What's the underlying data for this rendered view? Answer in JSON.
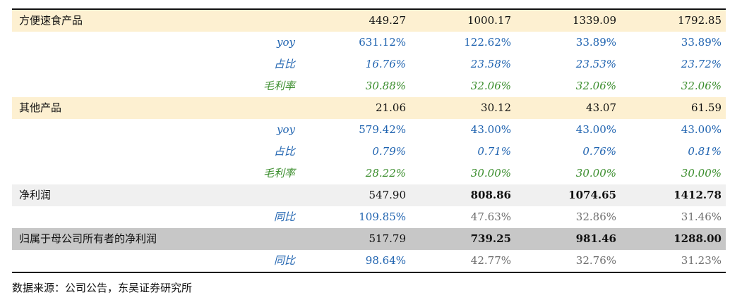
{
  "rows": [
    {
      "label": "方便速食产品",
      "values": [
        "449.27",
        "1000.17",
        "1339.09",
        "1792.85"
      ]
    },
    {
      "label": "yoy",
      "values": [
        "631.12%",
        "122.62%",
        "33.89%",
        "33.89%"
      ]
    },
    {
      "label": "占比",
      "values": [
        "16.76%",
        "23.58%",
        "23.53%",
        "23.72%"
      ]
    },
    {
      "label": "毛利率",
      "values": [
        "30.88%",
        "32.06%",
        "32.06%",
        "32.06%"
      ]
    },
    {
      "label": "其他产品",
      "values": [
        "21.06",
        "30.12",
        "43.07",
        "61.59"
      ]
    },
    {
      "label": "yoy",
      "values": [
        "579.42%",
        "43.00%",
        "43.00%",
        "43.00%"
      ]
    },
    {
      "label": "占比",
      "values": [
        "0.79%",
        "0.71%",
        "0.76%",
        "0.81%"
      ]
    },
    {
      "label": "毛利率",
      "values": [
        "28.22%",
        "30.00%",
        "30.00%",
        "30.00%"
      ]
    },
    {
      "label": "净利润",
      "values": [
        "547.90",
        "808.86",
        "1074.65",
        "1412.78"
      ]
    },
    {
      "label": "同比",
      "values": [
        "109.85%",
        "47.63%",
        "32.86%",
        "31.46%"
      ]
    },
    {
      "label": "归属于母公司所有者的净利润",
      "values": [
        "517.79",
        "739.25",
        "981.46",
        "1288.00"
      ]
    },
    {
      "label": "同比",
      "values": [
        "98.64%",
        "42.77%",
        "32.76%",
        "31.23%"
      ]
    }
  ],
  "source": "数据来源：公司公告，东吴证券研究所",
  "colors": {
    "section_bg": "#fdf0d1",
    "light_gray_bg": "#f0f0f0",
    "dark_gray_bg": "#c7c7c7",
    "blue_text": "#1f63b0",
    "green_text": "#3a8d2c"
  }
}
